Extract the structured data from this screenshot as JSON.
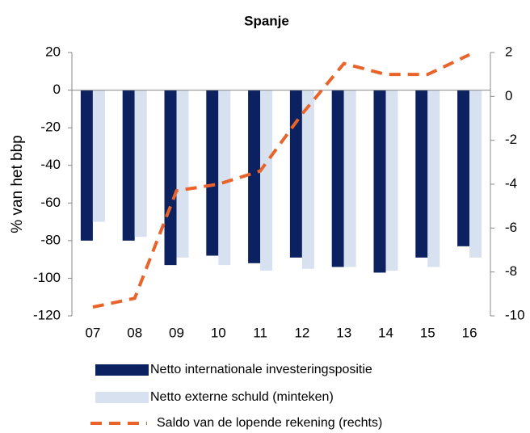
{
  "chart_data": {
    "type": "bar",
    "title": "Spanje",
    "y_label": "% van het bbp",
    "categories": [
      "07",
      "08",
      "09",
      "10",
      "11",
      "12",
      "13",
      "14",
      "15",
      "16"
    ],
    "series": [
      {
        "name": "Netto internationale investeringspositie",
        "color": "#0b2160",
        "type": "bar",
        "values": [
          -80,
          -80,
          -93,
          -88,
          -92,
          -89,
          -94,
          -97,
          -89,
          -83
        ]
      },
      {
        "name": "Netto externe schuld (minteken)",
        "color": "#d7e1f0",
        "type": "bar",
        "values": [
          -70,
          -78,
          -89,
          -93,
          -96,
          -95,
          -94,
          -96,
          -94,
          -89
        ]
      },
      {
        "name": "Saldo van de lopende rekening (rechts)",
        "color": "#e8642a",
        "type": "line",
        "axis": "y2",
        "values": [
          -9.6,
          -9.2,
          -4.3,
          -4.0,
          -3.4,
          -0.8,
          1.5,
          1.0,
          1.0,
          1.9
        ]
      }
    ],
    "ylim": [
      -120,
      20
    ],
    "yticks": [
      -120,
      -100,
      -80,
      -60,
      -40,
      -20,
      0,
      20
    ],
    "y2lim": [
      -10,
      2
    ],
    "y2ticks": [
      -10,
      -8,
      -6,
      -4,
      -2,
      0,
      2
    ]
  }
}
